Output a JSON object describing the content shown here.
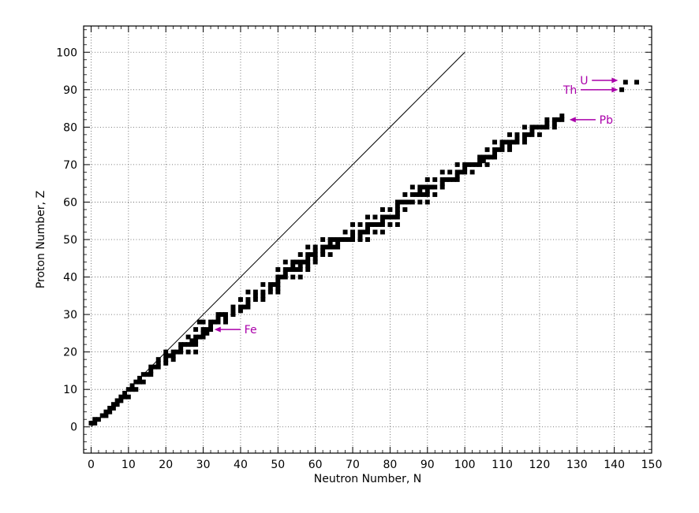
{
  "chart_data": {
    "type": "scatter",
    "xlabel": "Neutron Number, N",
    "ylabel": "Proton Number, Z",
    "xlim": [
      -2,
      150
    ],
    "ylim": [
      -7,
      107
    ],
    "x_ticks": [
      0,
      10,
      20,
      30,
      40,
      50,
      60,
      70,
      80,
      90,
      100,
      110,
      120,
      130,
      140,
      150
    ],
    "y_ticks": [
      0,
      10,
      20,
      30,
      40,
      50,
      60,
      70,
      80,
      90,
      100
    ],
    "x_minor_step": 2,
    "y_minor_step": 2,
    "grid": true,
    "reference_line": {
      "points": [
        [
          0,
          0
        ],
        [
          100,
          100
        ]
      ],
      "color": "#000000"
    },
    "series": [
      {
        "color": "#000000",
        "points": [
          [
            0,
            1
          ],
          [
            1,
            1
          ],
          [
            1,
            2
          ],
          [
            2,
            2
          ],
          [
            3,
            3
          ],
          [
            4,
            3
          ],
          [
            4,
            4
          ],
          [
            5,
            4
          ],
          [
            5,
            5
          ],
          [
            6,
            5
          ],
          [
            6,
            6
          ],
          [
            7,
            6
          ],
          [
            7,
            7
          ],
          [
            8,
            7
          ],
          [
            8,
            8
          ],
          [
            9,
            8
          ],
          [
            10,
            8
          ],
          [
            9,
            9
          ],
          [
            10,
            10
          ],
          [
            11,
            10
          ],
          [
            12,
            10
          ],
          [
            11,
            11
          ],
          [
            12,
            12
          ],
          [
            13,
            12
          ],
          [
            14,
            12
          ],
          [
            13,
            13
          ],
          [
            14,
            14
          ],
          [
            15,
            14
          ],
          [
            16,
            14
          ],
          [
            16,
            15
          ],
          [
            16,
            16
          ],
          [
            17,
            16
          ],
          [
            18,
            16
          ],
          [
            18,
            17
          ],
          [
            20,
            17
          ],
          [
            18,
            18
          ],
          [
            20,
            18
          ],
          [
            22,
            18
          ],
          [
            20,
            19
          ],
          [
            21,
            19
          ],
          [
            22,
            19
          ],
          [
            20,
            20
          ],
          [
            22,
            20
          ],
          [
            23,
            20
          ],
          [
            24,
            20
          ],
          [
            26,
            20
          ],
          [
            28,
            20
          ],
          [
            24,
            21
          ],
          [
            24,
            22
          ],
          [
            25,
            22
          ],
          [
            26,
            22
          ],
          [
            27,
            22
          ],
          [
            28,
            22
          ],
          [
            27,
            23
          ],
          [
            28,
            23
          ],
          [
            26,
            24
          ],
          [
            28,
            24
          ],
          [
            29,
            24
          ],
          [
            30,
            24
          ],
          [
            30,
            25
          ],
          [
            31,
            25
          ],
          [
            28,
            26
          ],
          [
            30,
            26
          ],
          [
            31,
            26
          ],
          [
            32,
            26
          ],
          [
            32,
            27
          ],
          [
            30,
            28
          ],
          [
            32,
            28
          ],
          [
            33,
            28
          ],
          [
            34,
            28
          ],
          [
            36,
            28
          ],
          [
            29,
            28
          ],
          [
            34,
            29
          ],
          [
            36,
            29
          ],
          [
            34,
            30
          ],
          [
            35,
            30
          ],
          [
            36,
            30
          ],
          [
            38,
            30
          ],
          [
            38,
            31
          ],
          [
            40,
            31
          ],
          [
            38,
            32
          ],
          [
            40,
            32
          ],
          [
            41,
            32
          ],
          [
            42,
            32
          ],
          [
            42,
            33
          ],
          [
            40,
            34
          ],
          [
            42,
            34
          ],
          [
            44,
            34
          ],
          [
            46,
            34
          ],
          [
            44,
            35
          ],
          [
            46,
            35
          ],
          [
            42,
            36
          ],
          [
            44,
            36
          ],
          [
            46,
            36
          ],
          [
            48,
            36
          ],
          [
            50,
            36
          ],
          [
            48,
            37
          ],
          [
            50,
            37
          ],
          [
            46,
            38
          ],
          [
            48,
            38
          ],
          [
            49,
            38
          ],
          [
            50,
            38
          ],
          [
            50,
            39
          ],
          [
            50,
            40
          ],
          [
            51,
            40
          ],
          [
            52,
            40
          ],
          [
            54,
            40
          ],
          [
            56,
            40
          ],
          [
            52,
            41
          ],
          [
            50,
            42
          ],
          [
            52,
            42
          ],
          [
            53,
            42
          ],
          [
            54,
            42
          ],
          [
            55,
            42
          ],
          [
            56,
            42
          ],
          [
            58,
            42
          ],
          [
            54,
            43
          ],
          [
            56,
            43
          ],
          [
            58,
            43
          ],
          [
            52,
            44
          ],
          [
            54,
            44
          ],
          [
            55,
            44
          ],
          [
            56,
            44
          ],
          [
            57,
            44
          ],
          [
            58,
            44
          ],
          [
            60,
            44
          ],
          [
            58,
            45
          ],
          [
            60,
            45
          ],
          [
            56,
            46
          ],
          [
            58,
            46
          ],
          [
            59,
            46
          ],
          [
            60,
            46
          ],
          [
            62,
            46
          ],
          [
            64,
            46
          ],
          [
            60,
            47
          ],
          [
            62,
            47
          ],
          [
            58,
            48
          ],
          [
            60,
            48
          ],
          [
            62,
            48
          ],
          [
            63,
            48
          ],
          [
            64,
            48
          ],
          [
            65,
            48
          ],
          [
            66,
            48
          ],
          [
            64,
            49
          ],
          [
            66,
            49
          ],
          [
            62,
            50
          ],
          [
            64,
            50
          ],
          [
            65,
            50
          ],
          [
            66,
            50
          ],
          [
            67,
            50
          ],
          [
            68,
            50
          ],
          [
            69,
            50
          ],
          [
            70,
            50
          ],
          [
            72,
            50
          ],
          [
            74,
            50
          ],
          [
            70,
            51
          ],
          [
            72,
            51
          ],
          [
            68,
            52
          ],
          [
            70,
            52
          ],
          [
            72,
            52
          ],
          [
            73,
            52
          ],
          [
            74,
            52
          ],
          [
            76,
            52
          ],
          [
            78,
            52
          ],
          [
            74,
            53
          ],
          [
            70,
            54
          ],
          [
            72,
            54
          ],
          [
            74,
            54
          ],
          [
            75,
            54
          ],
          [
            76,
            54
          ],
          [
            77,
            54
          ],
          [
            78,
            54
          ],
          [
            80,
            54
          ],
          [
            82,
            54
          ],
          [
            78,
            55
          ],
          [
            74,
            56
          ],
          [
            76,
            56
          ],
          [
            78,
            56
          ],
          [
            79,
            56
          ],
          [
            80,
            56
          ],
          [
            81,
            56
          ],
          [
            82,
            56
          ],
          [
            82,
            57
          ],
          [
            78,
            58
          ],
          [
            80,
            58
          ],
          [
            82,
            58
          ],
          [
            84,
            58
          ],
          [
            82,
            59
          ],
          [
            82,
            60
          ],
          [
            83,
            60
          ],
          [
            84,
            60
          ],
          [
            85,
            60
          ],
          [
            86,
            60
          ],
          [
            88,
            60
          ],
          [
            90,
            60
          ],
          [
            84,
            62
          ],
          [
            86,
            62
          ],
          [
            87,
            62
          ],
          [
            88,
            62
          ],
          [
            89,
            62
          ],
          [
            90,
            62
          ],
          [
            92,
            62
          ],
          [
            88,
            63
          ],
          [
            90,
            63
          ],
          [
            86,
            64
          ],
          [
            88,
            64
          ],
          [
            89,
            64
          ],
          [
            90,
            64
          ],
          [
            91,
            64
          ],
          [
            92,
            64
          ],
          [
            94,
            64
          ],
          [
            94,
            65
          ],
          [
            90,
            66
          ],
          [
            92,
            66
          ],
          [
            94,
            66
          ],
          [
            95,
            66
          ],
          [
            96,
            66
          ],
          [
            97,
            66
          ],
          [
            98,
            66
          ],
          [
            98,
            67
          ],
          [
            94,
            68
          ],
          [
            96,
            68
          ],
          [
            98,
            68
          ],
          [
            99,
            68
          ],
          [
            100,
            68
          ],
          [
            102,
            68
          ],
          [
            100,
            69
          ],
          [
            98,
            70
          ],
          [
            100,
            70
          ],
          [
            101,
            70
          ],
          [
            102,
            70
          ],
          [
            103,
            70
          ],
          [
            104,
            70
          ],
          [
            106,
            70
          ],
          [
            104,
            71
          ],
          [
            105,
            71
          ],
          [
            104,
            72
          ],
          [
            105,
            72
          ],
          [
            106,
            72
          ],
          [
            107,
            72
          ],
          [
            108,
            72
          ],
          [
            108,
            73
          ],
          [
            106,
            74
          ],
          [
            108,
            74
          ],
          [
            109,
            74
          ],
          [
            110,
            74
          ],
          [
            112,
            74
          ],
          [
            110,
            75
          ],
          [
            112,
            75
          ],
          [
            108,
            76
          ],
          [
            110,
            76
          ],
          [
            111,
            76
          ],
          [
            112,
            76
          ],
          [
            113,
            76
          ],
          [
            114,
            76
          ],
          [
            116,
            76
          ],
          [
            114,
            77
          ],
          [
            116,
            77
          ],
          [
            112,
            78
          ],
          [
            114,
            78
          ],
          [
            116,
            78
          ],
          [
            117,
            78
          ],
          [
            118,
            78
          ],
          [
            120,
            78
          ],
          [
            118,
            79
          ],
          [
            116,
            80
          ],
          [
            118,
            80
          ],
          [
            119,
            80
          ],
          [
            120,
            80
          ],
          [
            121,
            80
          ],
          [
            122,
            80
          ],
          [
            124,
            80
          ],
          [
            122,
            81
          ],
          [
            124,
            81
          ],
          [
            122,
            82
          ],
          [
            124,
            82
          ],
          [
            125,
            82
          ],
          [
            126,
            82
          ],
          [
            126,
            83
          ],
          [
            142,
            90
          ],
          [
            143,
            92
          ],
          [
            146,
            92
          ]
        ]
      }
    ],
    "annotations": [
      {
        "label": "Fe",
        "tail": [
          40,
          26
        ],
        "head": [
          33,
          26
        ],
        "text_pos": [
          41,
          26
        ],
        "text_anchor": "start",
        "color": "#aa00aa"
      },
      {
        "label": "Pb",
        "tail": [
          135,
          82
        ],
        "head": [
          128,
          82
        ],
        "text_pos": [
          136,
          82
        ],
        "text_anchor": "start",
        "color": "#aa00aa"
      },
      {
        "label": "Th",
        "tail": [
          131,
          90
        ],
        "head": [
          141,
          90
        ],
        "text_pos": [
          130,
          90
        ],
        "text_anchor": "end",
        "color": "#aa00aa"
      },
      {
        "label": "U",
        "tail": [
          134,
          92.5
        ],
        "head": [
          141,
          92.5
        ],
        "text_pos": [
          133,
          92.5
        ],
        "text_anchor": "end",
        "color": "#aa00aa"
      }
    ]
  }
}
